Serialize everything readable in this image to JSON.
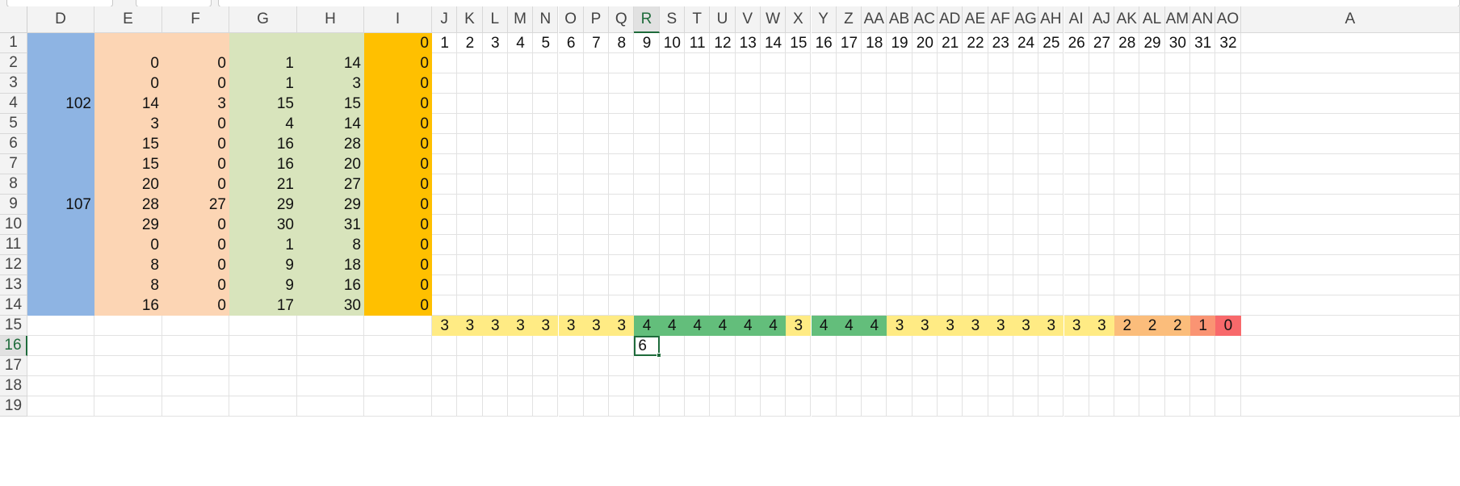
{
  "colors": {
    "blue": "#8eb4e3",
    "peach": "#fcd5b4",
    "green_light": "#d8e4bc",
    "orange": "#ffc000",
    "select": "#1e6b3b",
    "cs_3": "#ffeb84",
    "cs_4": "#63be7b",
    "cs_2": "#fbbd7b",
    "cs_1": "#fa9473",
    "cs_0": "#f8696b"
  },
  "columns": [
    "D",
    "E",
    "F",
    "G",
    "H",
    "I",
    "J",
    "K",
    "L",
    "M",
    "N",
    "O",
    "P",
    "Q",
    "R",
    "S",
    "T",
    "U",
    "V",
    "W",
    "X",
    "Y",
    "Z",
    "AA",
    "AB",
    "AC",
    "AD",
    "AE",
    "AF",
    "AG",
    "AH",
    "AI",
    "AJ",
    "AK",
    "AL",
    "AM",
    "AN",
    "AO"
  ],
  "partial_column_label": "A",
  "rows": [
    "1",
    "2",
    "3",
    "4",
    "5",
    "6",
    "7",
    "8",
    "9",
    "10",
    "11",
    "12",
    "13",
    "14",
    "15",
    "16",
    "17",
    "18",
    "19"
  ],
  "selected": {
    "column": "R",
    "row": "16",
    "value": "6"
  },
  "left_block": {
    "D": [
      "",
      "",
      "",
      "102",
      "",
      "",
      "",
      "",
      "107",
      "",
      "",
      "",
      "",
      ""
    ],
    "E": [
      "",
      "0",
      "0",
      "14",
      "3",
      "15",
      "15",
      "20",
      "28",
      "29",
      "0",
      "8",
      "8",
      "16"
    ],
    "F": [
      "",
      "0",
      "0",
      "3",
      "0",
      "0",
      "0",
      "0",
      "27",
      "0",
      "0",
      "0",
      "0",
      "0"
    ],
    "G": [
      "",
      "1",
      "1",
      "15",
      "4",
      "16",
      "16",
      "21",
      "29",
      "30",
      "1",
      "9",
      "9",
      "17"
    ],
    "H": [
      "",
      "14",
      "3",
      "15",
      "14",
      "28",
      "20",
      "27",
      "29",
      "31",
      "8",
      "18",
      "16",
      "30"
    ],
    "I": [
      "0",
      "0",
      "0",
      "0",
      "0",
      "0",
      "0",
      "0",
      "0",
      "0",
      "0",
      "0",
      "0",
      "0"
    ]
  },
  "header_numbers": [
    "1",
    "2",
    "3",
    "4",
    "5",
    "6",
    "7",
    "8",
    "9",
    "10",
    "11",
    "12",
    "13",
    "14",
    "15",
    "16",
    "17",
    "18",
    "19",
    "20",
    "21",
    "22",
    "23",
    "24",
    "25",
    "26",
    "27",
    "28",
    "29",
    "30",
    "31",
    "32"
  ],
  "grid_ones": [
    {
      "row": 2,
      "from": 1,
      "to": 14
    },
    {
      "row": 3,
      "from": 1,
      "to": 3
    },
    {
      "row": 4,
      "from": 15,
      "to": 15
    },
    {
      "row": 5,
      "from": 4,
      "to": 14
    },
    {
      "row": 6,
      "from": 16,
      "to": 28
    },
    {
      "row": 7,
      "from": 16,
      "to": 20
    },
    {
      "row": 8,
      "from": 21,
      "to": 27
    },
    {
      "row": 9,
      "from": 29,
      "to": 29
    },
    {
      "row": 10,
      "from": 30,
      "to": 31
    },
    {
      "row": 11,
      "from": 1,
      "to": 8
    },
    {
      "row": 12,
      "from": 9,
      "to": 18
    },
    {
      "row": 13,
      "from": 9,
      "to": 16
    },
    {
      "row": 14,
      "from": 17,
      "to": 30
    }
  ],
  "totals": [
    "3",
    "3",
    "3",
    "3",
    "3",
    "3",
    "3",
    "3",
    "4",
    "4",
    "4",
    "4",
    "4",
    "4",
    "3",
    "4",
    "4",
    "4",
    "3",
    "3",
    "3",
    "3",
    "3",
    "3",
    "3",
    "3",
    "3",
    "2",
    "2",
    "2",
    "1",
    "0"
  ]
}
